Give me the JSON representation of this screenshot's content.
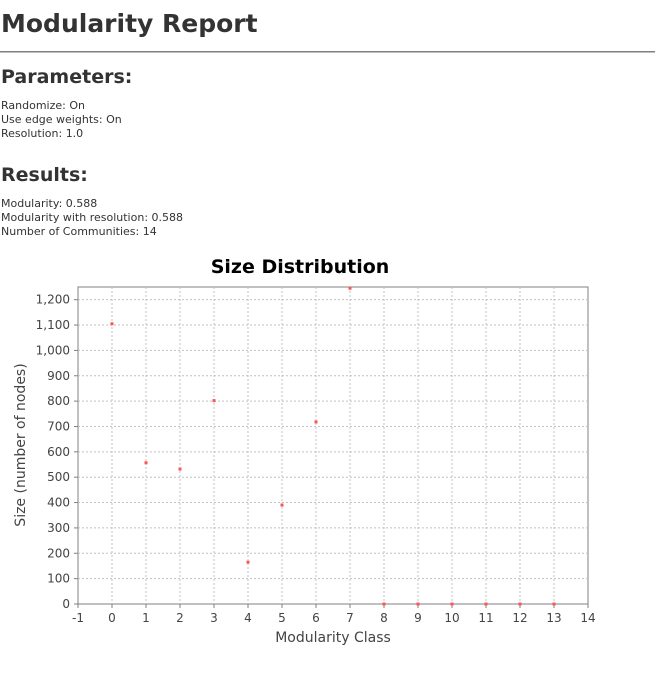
{
  "report": {
    "title": "Modularity Report"
  },
  "parameters": {
    "heading": "Parameters:",
    "items": [
      {
        "label": "Randomize",
        "value": "On"
      },
      {
        "label": "Use edge weights",
        "value": "On"
      },
      {
        "label": "Resolution",
        "value": "1.0"
      }
    ]
  },
  "results": {
    "heading": "Results:",
    "items": [
      {
        "label": "Modularity",
        "value": "0.588"
      },
      {
        "label": "Modularity with resolution",
        "value": "0.588"
      },
      {
        "label": "Number of Communities",
        "value": "14"
      }
    ]
  },
  "chart_data": {
    "type": "scatter",
    "title": "Size Distribution",
    "xlabel": "Modularity Class",
    "ylabel": "Size (number of nodes)",
    "xlim": [
      -1,
      14
    ],
    "ylim": [
      0,
      1250
    ],
    "x_ticks": [
      -1,
      0,
      1,
      2,
      3,
      4,
      5,
      6,
      7,
      8,
      9,
      10,
      11,
      12,
      13,
      14
    ],
    "y_ticks": [
      0,
      100,
      200,
      300,
      400,
      500,
      600,
      700,
      800,
      900,
      1000,
      1100,
      1200
    ],
    "y_tick_labels": [
      "0",
      "100",
      "200",
      "300",
      "400",
      "500",
      "600",
      "700",
      "800",
      "900",
      "1,000",
      "1,100",
      "1,200"
    ],
    "grid": true,
    "legend": "none",
    "point_color": "#ff5555",
    "series": [
      {
        "x": [
          0,
          1,
          2,
          3,
          4,
          5,
          6,
          7,
          8,
          9,
          10,
          11,
          12,
          13
        ],
        "values": [
          1105,
          557,
          532,
          802,
          165,
          390,
          718,
          1245,
          0,
          0,
          0,
          0,
          0,
          0
        ]
      }
    ]
  }
}
